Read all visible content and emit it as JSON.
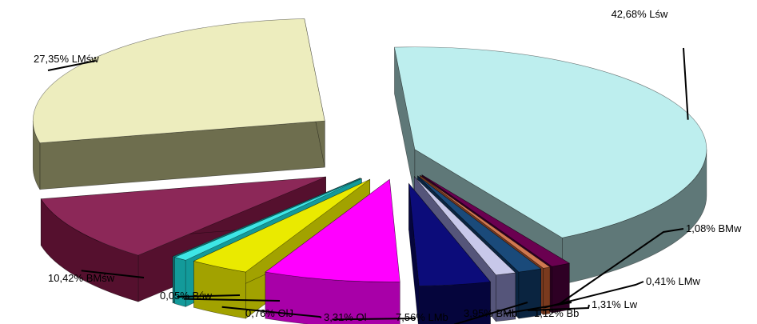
{
  "chart_data": {
    "type": "pie",
    "title": "",
    "variant": "exploded-3d",
    "legend": "none",
    "slices": [
      {
        "label": "Lśw",
        "value": 42.68,
        "display": "42,68% Lśw",
        "color": "#bdeeee",
        "side": "#5f7878"
      },
      {
        "label": "BMw",
        "value": 1.08,
        "display": "1,08% BMw",
        "color": "#6a0050",
        "side": "#2e0024"
      },
      {
        "label": "LMw",
        "value": 0.41,
        "display": "0,41% LMw",
        "color": "#d07850",
        "side": "#7a3a1e"
      },
      {
        "label": "Lw",
        "value": 1.31,
        "display": "1,31% Lw",
        "color": "#1a4a7a",
        "side": "#0a2440"
      },
      {
        "label": "Bb",
        "value": 1.12,
        "display": "1,12% Bb",
        "color": "#c8c8ea",
        "side": "#55557a"
      },
      {
        "label": "BMb",
        "value": 3.95,
        "display": "3,95% BMb",
        "color": "#0c0c7a",
        "side": "#05053c"
      },
      {
        "label": "LMb",
        "value": 7.56,
        "display": "7,56% LMb",
        "color": "#ff00ff",
        "side": "#a800a8"
      },
      {
        "label": "Ol",
        "value": 3.31,
        "display": "3,31% Ol",
        "color": "#eaea00",
        "side": "#a2a200"
      },
      {
        "label": "OlJ",
        "value": 0.76,
        "display": "0,76% OlJ",
        "color": "#3ee6e6",
        "side": "#139a9a"
      },
      {
        "label": "Bśw",
        "value": 0.05,
        "display": "0,05% Bśw",
        "color": "#30d0d0",
        "side": "#108a8a"
      },
      {
        "label": "BMśw",
        "value": 10.42,
        "display": "10,42% BMśw",
        "color": "#8c2858",
        "side": "#55102e"
      },
      {
        "label": "LMśw",
        "value": 27.35,
        "display": "27,35% LMśw",
        "color": "#ededbe",
        "side": "#6e6e4e"
      }
    ]
  }
}
